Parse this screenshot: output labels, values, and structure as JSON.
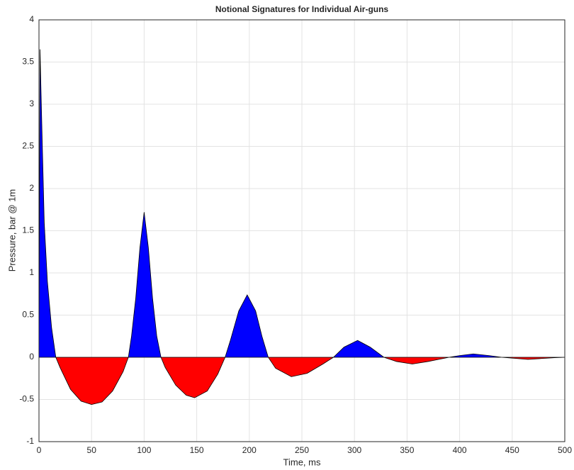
{
  "chart_data": {
    "type": "area",
    "title": "Notional Signatures for Individual Air-guns",
    "x_label": "Time, ms",
    "y_label": "Pressure, bar @ 1m",
    "x": [
      0,
      1,
      3,
      5,
      8,
      12,
      16,
      20,
      30,
      40,
      50,
      60,
      70,
      80,
      85,
      88,
      92,
      96,
      100,
      104,
      108,
      112,
      116,
      120,
      130,
      140,
      148,
      160,
      170,
      177,
      182,
      190,
      198,
      206,
      212,
      218,
      225,
      240,
      255,
      270,
      280,
      290,
      303,
      315,
      328,
      340,
      355,
      370,
      390,
      400,
      413,
      428,
      440,
      465,
      490,
      500
    ],
    "values": [
      0,
      3.65,
      2.6,
      1.6,
      0.9,
      0.35,
      0,
      -0.12,
      -0.38,
      -0.52,
      -0.56,
      -0.53,
      -0.4,
      -0.17,
      0,
      0.25,
      0.7,
      1.3,
      1.72,
      1.3,
      0.7,
      0.25,
      0,
      -0.12,
      -0.33,
      -0.45,
      -0.48,
      -0.4,
      -0.2,
      0,
      0.2,
      0.55,
      0.74,
      0.55,
      0.25,
      0,
      -0.13,
      -0.23,
      -0.19,
      -0.08,
      0,
      0.12,
      0.2,
      0.12,
      0,
      -0.05,
      -0.08,
      -0.05,
      0,
      0.02,
      0.04,
      0.02,
      0,
      -0.025,
      -0.005,
      0
    ],
    "positive_color": "#0000ff",
    "negative_color": "#ff0000",
    "line_color": "#000000",
    "xlim": [
      0,
      500
    ],
    "xticks": [
      0,
      50,
      100,
      150,
      200,
      250,
      300,
      350,
      400,
      450,
      500
    ],
    "ylim": [
      -1,
      4
    ],
    "yticks": [
      -1,
      -0.5,
      0,
      0.5,
      1,
      1.5,
      2,
      2.5,
      3,
      3.5,
      4
    ],
    "grid": true
  }
}
